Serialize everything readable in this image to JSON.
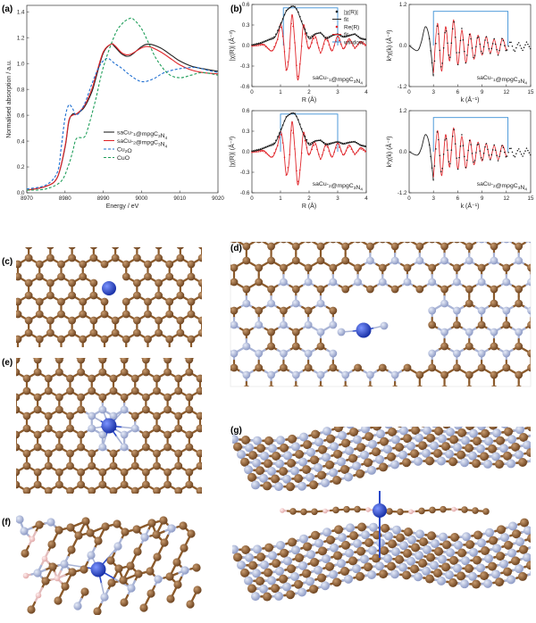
{
  "panels": {
    "a": "(a)",
    "b": "(b)",
    "c": "(c)",
    "d": "(d)",
    "e": "(e)",
    "f": "(f)",
    "g": "(g)"
  },
  "colors": {
    "C": "#8b5a2b",
    "N": "#a9b4d6",
    "Cu": "#2a49c9",
    "H": "#f1c4c4",
    "black": "#222222",
    "red": "#e0262b",
    "blue": "#1f6fd1",
    "green": "#1f9e5a",
    "window": "#3a8fd6"
  },
  "chart_data": [
    {
      "id": "a",
      "type": "line",
      "xlabel": "Energy / eV",
      "ylabel": "Normalised absorption / a.u.",
      "xlim": [
        8970,
        9020
      ],
      "ylim": [
        0,
        1.45
      ],
      "xticks": [
        "8970",
        "8980",
        "8990",
        "9000",
        "9010",
        "9020"
      ],
      "yticks": [
        "0.0",
        "0.2",
        "0.4",
        "0.6",
        "0.8",
        "1.0",
        "1.2",
        "1.4"
      ],
      "legend": [
        "saCu-1@mpgC3N4",
        "saCu-2@mpgC3N4",
        "Cu2O",
        "CuO"
      ],
      "series": [
        {
          "name": "saCu-1@mpgC3N4",
          "style": "solid",
          "color": "#222222",
          "x": [
            8970,
            8975,
            8978,
            8980,
            8981,
            8982,
            8983,
            8985,
            8987,
            8988,
            8990,
            8992,
            8993,
            8995,
            8997,
            9000,
            9002,
            9005,
            9008,
            9010,
            9013,
            9016,
            9020
          ],
          "y": [
            0.02,
            0.05,
            0.12,
            0.35,
            0.55,
            0.61,
            0.61,
            0.66,
            0.78,
            0.88,
            1.08,
            1.15,
            1.13,
            1.07,
            1.06,
            1.13,
            1.15,
            1.12,
            1.06,
            1.02,
            0.98,
            0.96,
            0.94
          ]
        },
        {
          "name": "saCu-2@mpgC3N4",
          "style": "solid",
          "color": "#e0262b",
          "x": [
            8970,
            8975,
            8978,
            8980,
            8981,
            8982,
            8983,
            8985,
            8987,
            8988,
            8990,
            8992,
            8993,
            8995,
            8997,
            9000,
            9002,
            9005,
            9008,
            9010,
            9013,
            9016,
            9020
          ],
          "y": [
            0.02,
            0.05,
            0.12,
            0.36,
            0.56,
            0.6,
            0.61,
            0.67,
            0.8,
            0.9,
            1.09,
            1.15,
            1.14,
            1.08,
            1.07,
            1.12,
            1.13,
            1.09,
            1.03,
            0.99,
            0.95,
            0.93,
            0.92
          ]
        },
        {
          "name": "Cu2O",
          "style": "dash",
          "color": "#1f6fd1",
          "x": [
            8970,
            8975,
            8978,
            8979,
            8980,
            8981,
            8982,
            8983,
            8985,
            8987,
            8989,
            8991,
            8993,
            8995,
            8997,
            9000,
            9003,
            9006,
            9010,
            9014,
            9017,
            9020
          ],
          "y": [
            0.03,
            0.06,
            0.16,
            0.35,
            0.58,
            0.68,
            0.65,
            0.6,
            0.68,
            0.84,
            0.98,
            1.04,
            1.0,
            0.96,
            0.91,
            0.86,
            0.88,
            0.93,
            0.96,
            0.97,
            0.95,
            0.93
          ]
        },
        {
          "name": "CuO",
          "style": "dash",
          "color": "#1f9e5a",
          "x": [
            8970,
            8975,
            8979,
            8981,
            8982,
            8983,
            8985,
            8986,
            8988,
            8990,
            8993,
            8995,
            8997,
            8998,
            9000,
            9002,
            9004,
            9007,
            9010,
            9013,
            9016,
            9020
          ],
          "y": [
            0.02,
            0.03,
            0.09,
            0.22,
            0.32,
            0.42,
            0.43,
            0.5,
            0.72,
            0.97,
            1.22,
            1.31,
            1.35,
            1.34,
            1.27,
            1.15,
            1.03,
            0.92,
            0.89,
            0.91,
            0.93,
            0.91
          ]
        }
      ]
    },
    {
      "id": "b1",
      "type": "line",
      "sample": "saCu-1@mpgC3N4",
      "xlabel": "R (Å)",
      "ylabel": "|χ(R)| (Å⁻³)",
      "xlim": [
        0,
        4
      ],
      "ylim": [
        -0.6,
        0.6
      ],
      "xticks": [
        "0",
        "1",
        "2",
        "3",
        "4"
      ],
      "yticks": [
        "-0.6",
        "-0.3",
        "0.0",
        "0.3",
        "0.6"
      ],
      "legend": [
        "|χ(R)|",
        "fit",
        "Re(R)",
        "fit",
        "window"
      ],
      "window": [
        1.1,
        3.0
      ],
      "mag_x": [
        0,
        0.3,
        0.6,
        0.8,
        1.0,
        1.2,
        1.4,
        1.5,
        1.6,
        1.8,
        2.0,
        2.2,
        2.4,
        2.6,
        2.8,
        3.0,
        3.2,
        3.4,
        3.6,
        3.8,
        4.0
      ],
      "mag_y": [
        0.0,
        0.03,
        0.08,
        0.12,
        0.3,
        0.5,
        0.57,
        0.56,
        0.5,
        0.28,
        0.1,
        0.16,
        0.18,
        0.1,
        0.14,
        0.16,
        0.12,
        0.14,
        0.16,
        0.1,
        0.08
      ],
      "re_x": [
        0,
        0.4,
        0.7,
        0.9,
        1.0,
        1.1,
        1.2,
        1.3,
        1.4,
        1.5,
        1.6,
        1.7,
        1.8,
        1.9,
        2.0,
        2.2,
        2.4,
        2.6,
        2.8,
        3.0,
        3.2,
        3.4,
        3.6,
        3.8,
        4.0
      ],
      "re_y": [
        0,
        0.02,
        -0.08,
        0.1,
        0.32,
        0.1,
        -0.35,
        -0.15,
        0.45,
        0.05,
        -0.5,
        -0.2,
        0.3,
        0.1,
        -0.05,
        0.15,
        -0.1,
        0.12,
        -0.08,
        0.14,
        -0.05,
        0.1,
        -0.03,
        0.06,
        0
      ]
    },
    {
      "id": "b2",
      "type": "line",
      "sample": "saCu-2@mpgC3N4",
      "xlabel": "R (Å)",
      "ylabel": "|χ(R)| (Å⁻³)",
      "xlim": [
        0,
        4
      ],
      "ylim": [
        -0.6,
        0.6
      ],
      "xticks": [
        "0",
        "1",
        "2",
        "3",
        "4"
      ],
      "yticks": [
        "-0.6",
        "-0.3",
        "0.0",
        "0.3",
        "0.6"
      ],
      "window": [
        1.0,
        3.0
      ],
      "mag_x": [
        0,
        0.3,
        0.6,
        0.8,
        1.0,
        1.2,
        1.4,
        1.5,
        1.6,
        1.8,
        2.0,
        2.2,
        2.4,
        2.6,
        2.8,
        3.0,
        3.2,
        3.4,
        3.6,
        3.8,
        4.0
      ],
      "mag_y": [
        0.0,
        0.03,
        0.08,
        0.12,
        0.3,
        0.5,
        0.56,
        0.55,
        0.48,
        0.26,
        0.1,
        0.15,
        0.16,
        0.1,
        0.12,
        0.14,
        0.11,
        0.13,
        0.14,
        0.09,
        0.07
      ],
      "re_x": [
        0,
        0.4,
        0.7,
        0.9,
        1.0,
        1.1,
        1.2,
        1.3,
        1.4,
        1.5,
        1.6,
        1.7,
        1.8,
        1.9,
        2.0,
        2.2,
        2.4,
        2.6,
        2.8,
        3.0,
        3.2,
        3.4,
        3.6,
        3.8,
        4.0
      ],
      "re_y": [
        0,
        0.02,
        -0.08,
        0.1,
        0.3,
        0.1,
        -0.33,
        -0.15,
        0.44,
        0.05,
        -0.48,
        -0.2,
        0.28,
        0.1,
        -0.05,
        0.14,
        -0.1,
        0.12,
        -0.08,
        0.13,
        -0.05,
        0.1,
        -0.03,
        0.06,
        0
      ]
    },
    {
      "id": "b3",
      "type": "line",
      "sample": "saCu-1@mpgC3N4",
      "xlabel": "k (Å⁻¹)",
      "ylabel": "k²χ(k) (Å⁻²)",
      "xlim": [
        0,
        15
      ],
      "ylim": [
        -1.2,
        1.2
      ],
      "xticks": [
        "0",
        "3",
        "6",
        "9",
        "12",
        "15"
      ],
      "yticks": [
        "-1.2",
        "0.0",
        "1.2"
      ],
      "window": [
        3.0,
        12.2
      ],
      "data_x": [
        0,
        1,
        1.5,
        2,
        2.5,
        3,
        3.5,
        4,
        4.5,
        5,
        5.5,
        6,
        6.5,
        7,
        7.5,
        8,
        8.5,
        9,
        9.5,
        10,
        10.5,
        11,
        11.5,
        12,
        12.5,
        13,
        13.5,
        14,
        14.5,
        15
      ],
      "data_y": [
        0,
        -0.15,
        0.1,
        0.55,
        0.2,
        -0.9,
        0.7,
        -0.8,
        0.6,
        -0.5,
        0.8,
        -0.6,
        0.5,
        -0.55,
        0.4,
        -0.45,
        0.35,
        -0.3,
        0.3,
        -0.25,
        0.2,
        -0.3,
        0.25,
        -0.2,
        0.15,
        -0.2,
        0.1,
        -0.15,
        0.1,
        -0.1
      ],
      "fit_x": [
        3,
        3.5,
        4,
        4.5,
        5,
        5.5,
        6,
        6.5,
        7,
        7.5,
        8,
        8.5,
        9,
        9.5,
        10,
        10.5,
        11,
        11.5,
        12
      ],
      "fit_y": [
        -0.8,
        0.65,
        -0.75,
        0.55,
        -0.45,
        0.75,
        -0.55,
        0.45,
        -0.5,
        0.35,
        -0.4,
        0.3,
        -0.28,
        0.26,
        -0.22,
        0.18,
        -0.25,
        0.2,
        -0.15
      ]
    },
    {
      "id": "b4",
      "type": "line",
      "sample": "saCu-2@mpgC3N4",
      "xlabel": "k (Å⁻¹)",
      "ylabel": "k²χ(k) (Å⁻²)",
      "xlim": [
        0,
        15
      ],
      "ylim": [
        -1.2,
        1.2
      ],
      "xticks": [
        "0",
        "3",
        "6",
        "9",
        "12",
        "15"
      ],
      "yticks": [
        "-1.2",
        "0.0",
        "1.2"
      ],
      "window": [
        3.0,
        12.2
      ],
      "data_x": [
        0,
        1,
        1.5,
        2,
        2.5,
        3,
        3.5,
        4,
        4.5,
        5,
        5.5,
        6,
        6.5,
        7,
        7.5,
        8,
        8.5,
        9,
        9.5,
        10,
        10.5,
        11,
        11.5,
        12,
        12.5,
        13,
        13.5,
        14,
        14.5,
        15
      ],
      "data_y": [
        0,
        -0.1,
        0.1,
        0.5,
        0.2,
        -0.85,
        0.7,
        -0.75,
        0.55,
        -0.5,
        0.75,
        -0.55,
        0.5,
        -0.5,
        0.4,
        -0.4,
        0.32,
        -0.3,
        0.28,
        -0.25,
        0.2,
        -0.28,
        0.22,
        -0.2,
        0.15,
        -0.18,
        0.1,
        -0.14,
        0.1,
        -0.1
      ],
      "fit_x": [
        3,
        3.5,
        4,
        4.5,
        5,
        5.5,
        6,
        6.5,
        7,
        7.5,
        8,
        8.5,
        9,
        9.5,
        10,
        10.5,
        11,
        11.5,
        12
      ],
      "fit_y": [
        -0.75,
        0.62,
        -0.7,
        0.5,
        -0.45,
        0.7,
        -0.5,
        0.45,
        -0.48,
        0.35,
        -0.38,
        0.28,
        -0.27,
        0.24,
        -0.22,
        0.18,
        -0.23,
        0.19,
        -0.15
      ]
    }
  ]
}
